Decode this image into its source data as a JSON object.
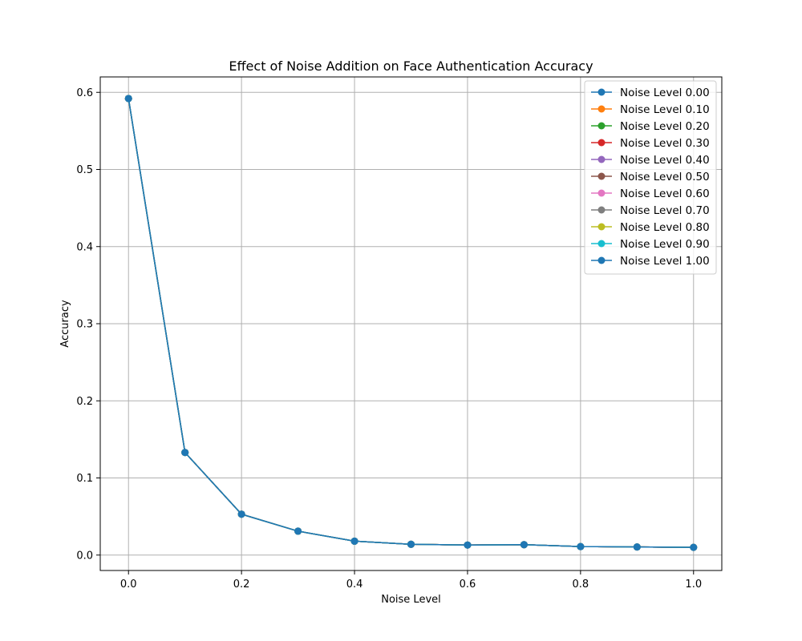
{
  "chart_data": {
    "type": "line",
    "title": "Effect of Noise Addition on Face Authentication Accuracy",
    "xlabel": "Noise Level",
    "ylabel": "Accuracy",
    "xlim": [
      -0.05,
      1.05
    ],
    "ylim": [
      -0.02,
      0.62
    ],
    "xticks": [
      0.0,
      0.2,
      0.4,
      0.6,
      0.8,
      1.0
    ],
    "xtick_labels": [
      "0.0",
      "0.2",
      "0.4",
      "0.6",
      "0.8",
      "1.0"
    ],
    "yticks": [
      0.0,
      0.1,
      0.2,
      0.3,
      0.4,
      0.5,
      0.6
    ],
    "ytick_labels": [
      "0.0",
      "0.1",
      "0.2",
      "0.3",
      "0.4",
      "0.5",
      "0.6"
    ],
    "grid": true,
    "legend_position": "top-right",
    "x": [
      0.0,
      0.1,
      0.2,
      0.3,
      0.4,
      0.5,
      0.6,
      0.7,
      0.8,
      0.9,
      1.0
    ],
    "series": [
      {
        "name": "Noise Level 0.00",
        "color": "#1f77b4",
        "values": [
          0.592,
          0.133,
          0.053,
          0.031,
          0.018,
          0.014,
          0.013,
          0.0135,
          0.011,
          0.0105,
          0.01
        ]
      },
      {
        "name": "Noise Level 0.10",
        "color": "#ff7f0e",
        "values": [
          0.592,
          0.133,
          0.053,
          0.031,
          0.018,
          0.014,
          0.013,
          0.0135,
          0.011,
          0.0105,
          0.01
        ]
      },
      {
        "name": "Noise Level 0.20",
        "color": "#2ca02c",
        "values": [
          0.592,
          0.133,
          0.053,
          0.031,
          0.018,
          0.014,
          0.013,
          0.0135,
          0.011,
          0.0105,
          0.01
        ]
      },
      {
        "name": "Noise Level 0.30",
        "color": "#d62728",
        "values": [
          0.592,
          0.133,
          0.053,
          0.031,
          0.018,
          0.014,
          0.013,
          0.0135,
          0.011,
          0.0105,
          0.01
        ]
      },
      {
        "name": "Noise Level 0.40",
        "color": "#9467bd",
        "values": [
          0.592,
          0.133,
          0.053,
          0.031,
          0.018,
          0.014,
          0.013,
          0.0135,
          0.011,
          0.0105,
          0.01
        ]
      },
      {
        "name": "Noise Level 0.50",
        "color": "#8c564b",
        "values": [
          0.592,
          0.133,
          0.053,
          0.031,
          0.018,
          0.014,
          0.013,
          0.0135,
          0.011,
          0.0105,
          0.01
        ]
      },
      {
        "name": "Noise Level 0.60",
        "color": "#e377c2",
        "values": [
          0.592,
          0.133,
          0.053,
          0.031,
          0.018,
          0.014,
          0.013,
          0.0135,
          0.011,
          0.0105,
          0.01
        ]
      },
      {
        "name": "Noise Level 0.70",
        "color": "#7f7f7f",
        "values": [
          0.592,
          0.133,
          0.053,
          0.031,
          0.018,
          0.014,
          0.013,
          0.0135,
          0.011,
          0.0105,
          0.01
        ]
      },
      {
        "name": "Noise Level 0.80",
        "color": "#bcbd22",
        "values": [
          0.592,
          0.133,
          0.053,
          0.031,
          0.018,
          0.014,
          0.013,
          0.0135,
          0.011,
          0.0105,
          0.01
        ]
      },
      {
        "name": "Noise Level 0.90",
        "color": "#17becf",
        "values": [
          0.592,
          0.133,
          0.053,
          0.031,
          0.018,
          0.014,
          0.013,
          0.0135,
          0.011,
          0.0105,
          0.01
        ]
      },
      {
        "name": "Noise Level 1.00",
        "color": "#1f77b4",
        "values": [
          0.592,
          0.133,
          0.053,
          0.031,
          0.018,
          0.014,
          0.013,
          0.0135,
          0.011,
          0.0105,
          0.01
        ]
      }
    ]
  }
}
